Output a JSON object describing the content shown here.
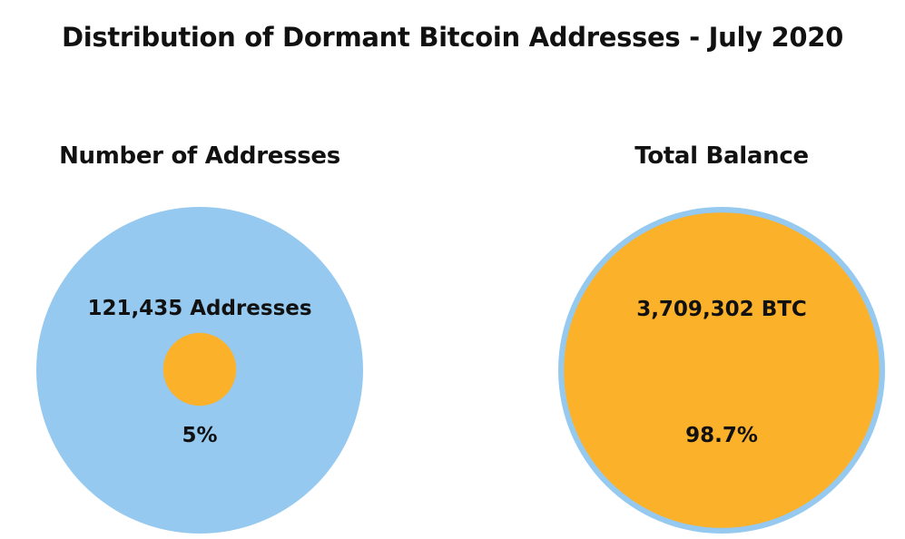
{
  "chart_data": {
    "type": "proportional-area-circles",
    "title": "Distribution of Dormant Bitcoin Addresses  - July 2020",
    "panels": [
      {
        "subtitle": "Number of Addresses",
        "value_label": "121,435 Addresses",
        "value": 121435,
        "share_label": "5%",
        "share_percent": 5,
        "outer_color": "#95C9EF",
        "inner_color": "#FBB12A"
      },
      {
        "subtitle": "Total Balance",
        "value_label": "3,709,302 BTC",
        "value": 3709302,
        "share_label": "98.7%",
        "share_percent": 98.7,
        "outer_color": "#95C9EF",
        "inner_color": "#FBB12A"
      }
    ]
  }
}
